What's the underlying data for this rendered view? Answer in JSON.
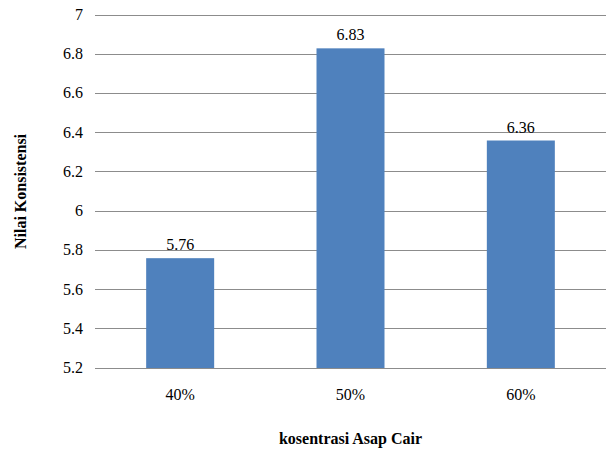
{
  "chart_data": {
    "type": "bar",
    "x_label": "kosentrasi Asap Cair",
    "y_label": "Nilai Konsistensi",
    "categories": [
      "40%",
      "50%",
      "60%"
    ],
    "values": [
      5.76,
      6.83,
      6.36
    ],
    "color": "#4f81bd",
    "ylim": [
      5.2,
      7
    ],
    "yticks": [
      5.2,
      5.4,
      5.6,
      5.8,
      6,
      6.2,
      6.4,
      6.6,
      6.8,
      7
    ],
    "grid": true,
    "data_labels": true
  }
}
